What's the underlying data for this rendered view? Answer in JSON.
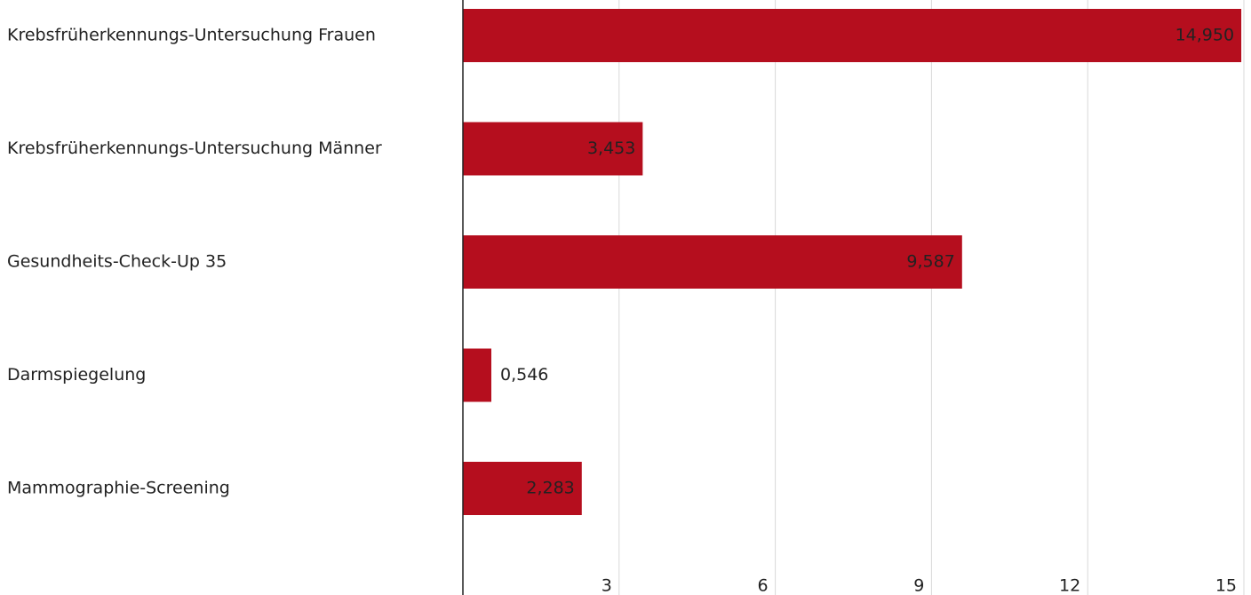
{
  "chart_data": {
    "type": "bar",
    "orientation": "horizontal",
    "categories": [
      "Krebsfrüherkennungs-Untersuchung Frauen",
      "Krebsfrüherkennungs-Untersuchung Männer",
      "Gesundheits-Check-Up 35",
      "Darmspiegelung",
      "Mammographie-Screening"
    ],
    "values": [
      14.95,
      3.453,
      9.587,
      0.546,
      2.283
    ],
    "value_labels": [
      "14,950",
      "3,453",
      "9,587",
      "0,546",
      "2,283"
    ],
    "color": "#b50e1e",
    "xlim": [
      0,
      15
    ],
    "xticks": [
      3,
      6,
      9,
      12,
      15
    ],
    "grid": true
  }
}
